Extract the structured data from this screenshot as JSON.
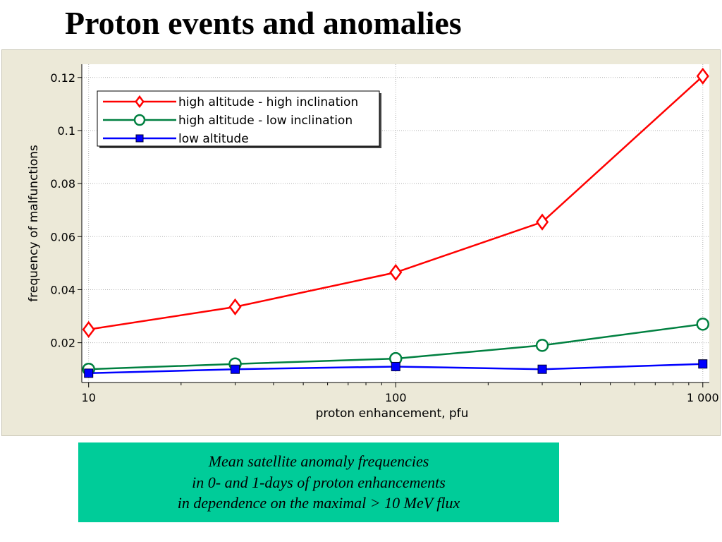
{
  "slide": {
    "title": "Proton events and anomalies",
    "caption": [
      "Mean satellite anomaly frequencies",
      "in 0- and 1-days of proton enhancements",
      "in dependence on the maximal > 10 MeV flux"
    ],
    "caption_bg": "#00cc99"
  },
  "chart_data": {
    "type": "line",
    "xlabel": "proton enhancement, pfu",
    "ylabel": "frequency of malfunctions",
    "x_scale": "log",
    "xlim": [
      9.5,
      1050
    ],
    "ylim": [
      0.005,
      0.125
    ],
    "x_ticks": [
      {
        "value": 10,
        "label": "10"
      },
      {
        "value": 100,
        "label": "100"
      },
      {
        "value": 1000,
        "label": "1 000"
      }
    ],
    "y_ticks": [
      {
        "value": 0.02,
        "label": "0.02"
      },
      {
        "value": 0.04,
        "label": "0.04"
      },
      {
        "value": 0.06,
        "label": "0.06"
      },
      {
        "value": 0.08,
        "label": "0.08"
      },
      {
        "value": 0.1,
        "label": "0.1"
      },
      {
        "value": 0.12,
        "label": "0.12"
      }
    ],
    "grid": true,
    "legend_position": "top-left",
    "series": [
      {
        "name": "high altitude - high inclination",
        "color": "#ff0000",
        "marker": "diamond-open",
        "points": [
          [
            10,
            0.025
          ],
          [
            30,
            0.0335
          ],
          [
            100,
            0.0465
          ],
          [
            300,
            0.0655
          ],
          [
            1000,
            0.1205
          ]
        ]
      },
      {
        "name": "high altitude - low inclination",
        "color": "#008040",
        "marker": "circle-open",
        "points": [
          [
            10,
            0.01
          ],
          [
            30,
            0.012
          ],
          [
            100,
            0.014
          ],
          [
            300,
            0.019
          ],
          [
            1000,
            0.027
          ]
        ]
      },
      {
        "name": "low altitude",
        "color": "#0000ff",
        "marker": "square-filled",
        "points": [
          [
            10,
            0.0085
          ],
          [
            30,
            0.01
          ],
          [
            100,
            0.011
          ],
          [
            300,
            0.01
          ],
          [
            1000,
            0.012
          ]
        ]
      }
    ]
  }
}
